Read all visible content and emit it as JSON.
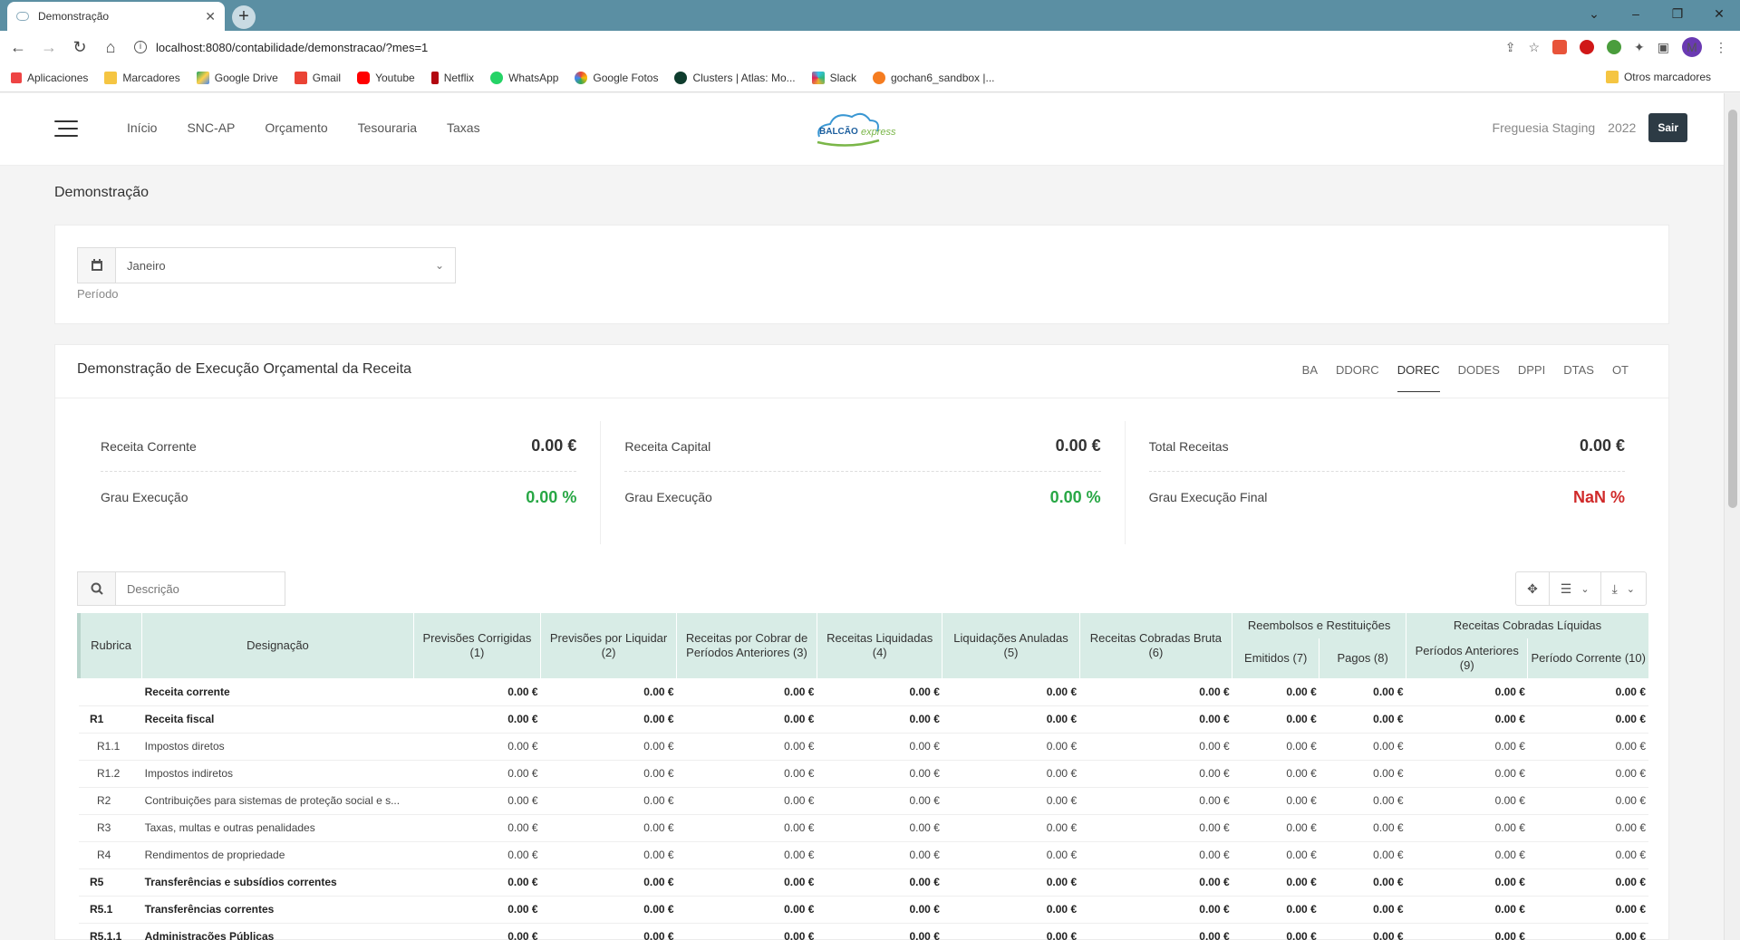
{
  "browser": {
    "tab_title": "Demonstração",
    "url": "localhost:8080/contabilidade/demonstracao/?mes=1",
    "profile_initial": "M",
    "bookmarks": [
      "Aplicaciones",
      "Marcadores",
      "Google Drive",
      "Gmail",
      "Youtube",
      "Netflix",
      "WhatsApp",
      "Google Fotos",
      "Clusters | Atlas: Mo...",
      "Slack",
      "gochan6_sandbox |..."
    ],
    "other_bookmarks": "Otros marcadores"
  },
  "header": {
    "menu": [
      "Início",
      "SNC-AP",
      "Orçamento",
      "Tesouraria",
      "Taxas"
    ],
    "logo_text": "BALCÃO",
    "logo_sub": "express",
    "entity": "Freguesia Staging",
    "year": "2022",
    "logout": "Sair"
  },
  "page_title": "Demonstração",
  "period": {
    "value": "Janeiro",
    "label": "Período"
  },
  "report": {
    "title": "Demonstração de Execução Orçamental da Receita",
    "tabs": [
      "BA",
      "DDORC",
      "DOREC",
      "DODES",
      "DPPI",
      "DTAS",
      "OT"
    ],
    "active_tab": "DOREC",
    "stats": [
      {
        "label1": "Receita Corrente",
        "value1": "0.00 €",
        "label2": "Grau Execução",
        "value2": "0.00 %"
      },
      {
        "label1": "Receita Capital",
        "value1": "0.00 €",
        "label2": "Grau Execução",
        "value2": "0.00 %"
      },
      {
        "label1": "Total Receitas",
        "value1": "0.00 €",
        "label2": "Grau Execução Final",
        "value2": "NaN %"
      }
    ],
    "search_placeholder": "Descrição",
    "columns": {
      "rubrica": "Rubrica",
      "designacao": "Designação",
      "c1": "Previsões Corrigidas (1)",
      "c2": "Previsões por Liquidar (2)",
      "c3": "Receitas por Cobrar de Períodos Anteriores (3)",
      "c4": "Receitas Liquidadas (4)",
      "c5": "Liquidações Anuladas (5)",
      "c6": "Receitas Cobradas Bruta (6)",
      "group1": "Reembolsos e Restituições",
      "c7": "Emitidos (7)",
      "c8": "Pagos (8)",
      "group2": "Receitas Cobradas Líquidas",
      "c9": "Períodos Anteriores (9)",
      "c10": "Período Corrente (10)"
    },
    "rows": [
      {
        "rubrica": "",
        "designacao": "Receita corrente",
        "bold": true,
        "sub": false
      },
      {
        "rubrica": "R1",
        "designacao": "Receita fiscal",
        "bold": true,
        "sub": false
      },
      {
        "rubrica": "R1.1",
        "designacao": "Impostos diretos",
        "bold": false,
        "sub": true
      },
      {
        "rubrica": "R1.2",
        "designacao": "Impostos indiretos",
        "bold": false,
        "sub": true
      },
      {
        "rubrica": "R2",
        "designacao": "Contribuições para sistemas de proteção social e s...",
        "bold": false,
        "sub": true
      },
      {
        "rubrica": "R3",
        "designacao": "Taxas, multas e outras penalidades",
        "bold": false,
        "sub": true
      },
      {
        "rubrica": "R4",
        "designacao": "Rendimentos de propriedade",
        "bold": false,
        "sub": true
      },
      {
        "rubrica": "R5",
        "designacao": "Transferências e subsídios correntes",
        "bold": true,
        "sub": false
      },
      {
        "rubrica": "R5.1",
        "designacao": "Transferências correntes",
        "bold": true,
        "sub": false
      },
      {
        "rubrica": "R5.1.1",
        "designacao": "Administrações Públicas",
        "bold": true,
        "sub": false
      }
    ],
    "cell_value": "0.00 €"
  }
}
